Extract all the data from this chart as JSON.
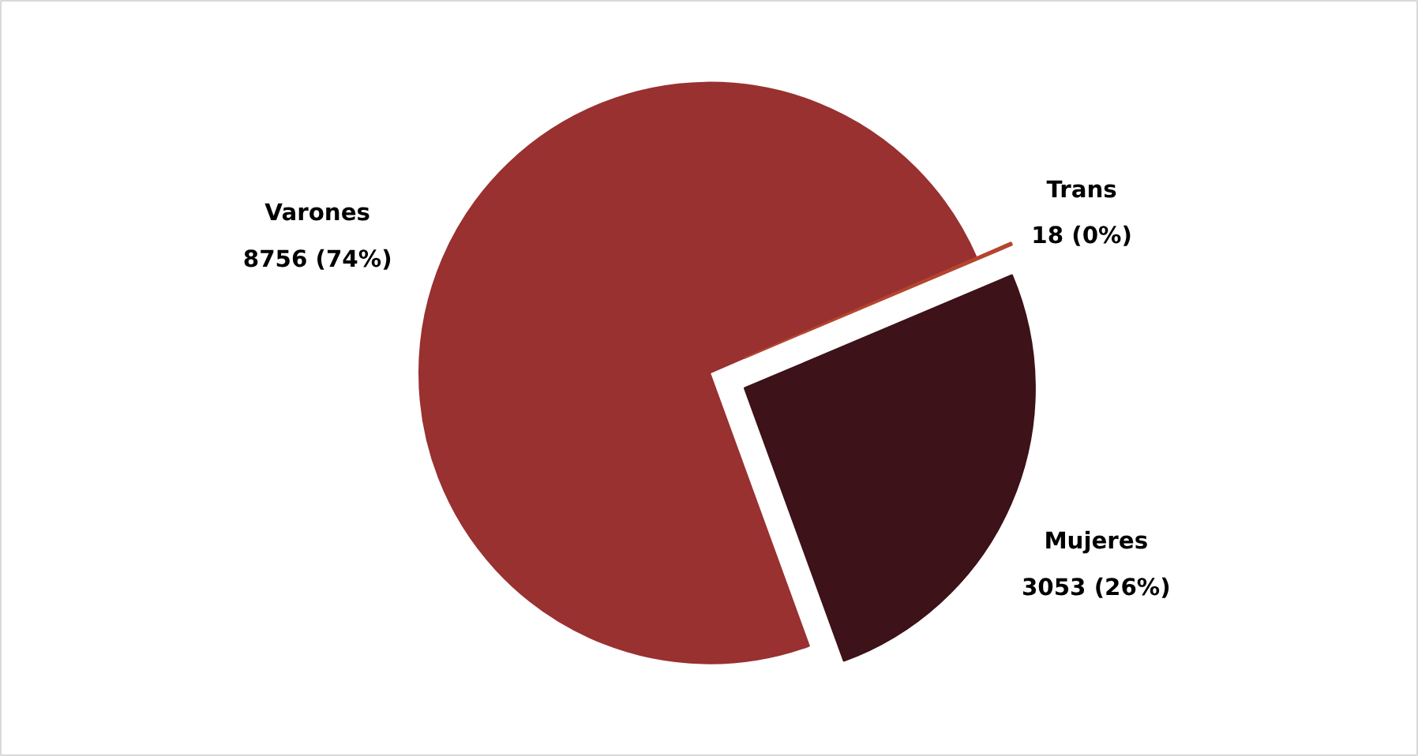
{
  "chart_data": {
    "type": "pie",
    "categories": [
      "Varones",
      "Trans",
      "Mujeres"
    ],
    "values": [
      8756,
      18,
      3053
    ],
    "colors": [
      "#993131",
      "#b5452f",
      "#3d1218"
    ],
    "value_labels": [
      "8756 (74%)",
      "18 (0%)",
      "3053 (26%)"
    ]
  }
}
